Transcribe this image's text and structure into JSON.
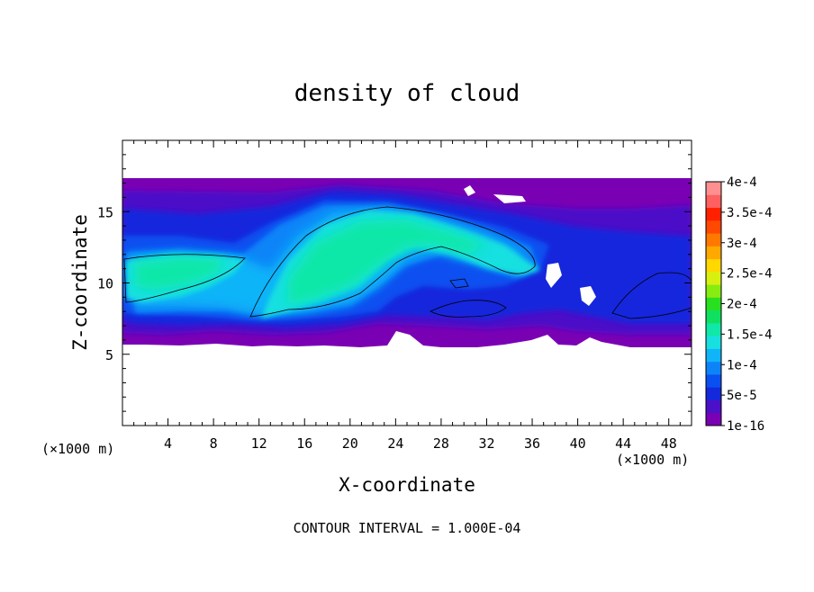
{
  "chart_data": {
    "type": "heatmap",
    "title": "density of cloud",
    "xlabel": "X-coordinate",
    "ylabel": "Z-coordinate",
    "x_unit": "(×1000 m)",
    "y_unit": "(×1000 m)",
    "xlim": [
      0,
      50
    ],
    "ylim": [
      0,
      20
    ],
    "x_ticks": [
      4,
      8,
      12,
      16,
      20,
      24,
      28,
      32,
      36,
      40,
      44,
      48
    ],
    "y_ticks": [
      5,
      10,
      15
    ],
    "footer": "CONTOUR INTERVAL = 1.000E-04",
    "grid": false,
    "colorbar": {
      "position": "right",
      "labels": [
        "1e-16",
        "5e-5",
        "1e-4",
        "1.5e-4",
        "2e-4",
        "2.5e-4",
        "3e-4",
        "3.5e-4",
        "4e-4"
      ],
      "label_values": [
        1e-16,
        5e-05,
        0.0001,
        0.00015,
        0.0002,
        0.00025,
        0.0003,
        0.00035,
        0.0004
      ],
      "colors": [
        "#7a00b4",
        "#4c10c8",
        "#1428dc",
        "#0a50f0",
        "#0c84f8",
        "#10b4f8",
        "#18e0e0",
        "#10e8a8",
        "#10e060",
        "#28e020",
        "#88ec10",
        "#d8f010",
        "#ffd800",
        "#ffa800",
        "#ff7800",
        "#ff4800",
        "#ff2000",
        "#ff6060",
        "#ff9090"
      ]
    },
    "contour_levels": [
      0.0001
    ],
    "cloud_regions": [
      {
        "x": [
          0,
          50
        ],
        "z_bottom": 6,
        "z_top": 17.3,
        "peak": 4e-05
      },
      {
        "x": [
          0.2,
          8.5
        ],
        "z": [
          8.5,
          12
        ],
        "peak": 0.00017
      },
      {
        "x": [
          10,
          29
        ],
        "z": [
          7.5,
          15.3
        ],
        "peak": 0.00019
      },
      {
        "x": [
          22,
          35
        ],
        "z": [
          10,
          13.5
        ],
        "peak": 0.00013
      },
      {
        "x": [
          27,
          34
        ],
        "z": [
          7.6,
          9.6
        ],
        "peak": 0.00012
      },
      {
        "x": [
          42,
          50
        ],
        "z": [
          7.5,
          10.5
        ],
        "peak": 0.00011
      }
    ]
  }
}
